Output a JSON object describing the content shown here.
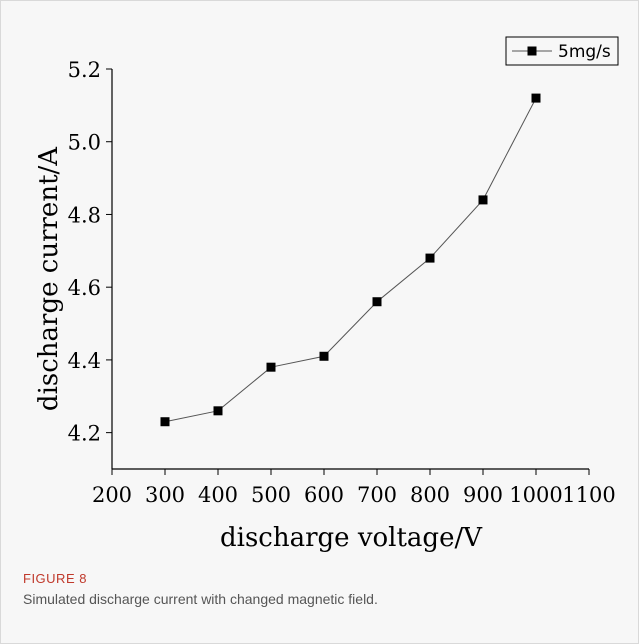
{
  "figure": {
    "label": "FIGURE 8",
    "caption": "Simulated discharge current with changed magnetic field."
  },
  "chart_data": {
    "type": "line",
    "xlabel": "discharge voltage/V",
    "ylabel": "discharge current/A",
    "xlim": [
      200,
      1100
    ],
    "ylim": [
      4.1,
      5.2
    ],
    "xticks": [
      200,
      300,
      400,
      500,
      600,
      700,
      800,
      900,
      1000,
      1100
    ],
    "yticks": [
      4.2,
      4.4,
      4.6,
      4.8,
      5.0,
      5.2
    ],
    "xtick_labels": [
      "200",
      "300",
      "400",
      "500",
      "600",
      "700",
      "800",
      "900",
      "1000",
      "1100"
    ],
    "ytick_labels": [
      "4.2",
      "4.4",
      "4.6",
      "4.8",
      "5.0",
      "5.2"
    ],
    "grid": false,
    "legend": "top-right",
    "series": [
      {
        "name": "5mg/s",
        "marker": "square",
        "color": "#000000",
        "x": [
          300,
          400,
          500,
          600,
          700,
          800,
          900,
          1000
        ],
        "y": [
          4.23,
          4.26,
          4.38,
          4.41,
          4.56,
          4.68,
          4.84,
          5.12
        ]
      }
    ]
  }
}
